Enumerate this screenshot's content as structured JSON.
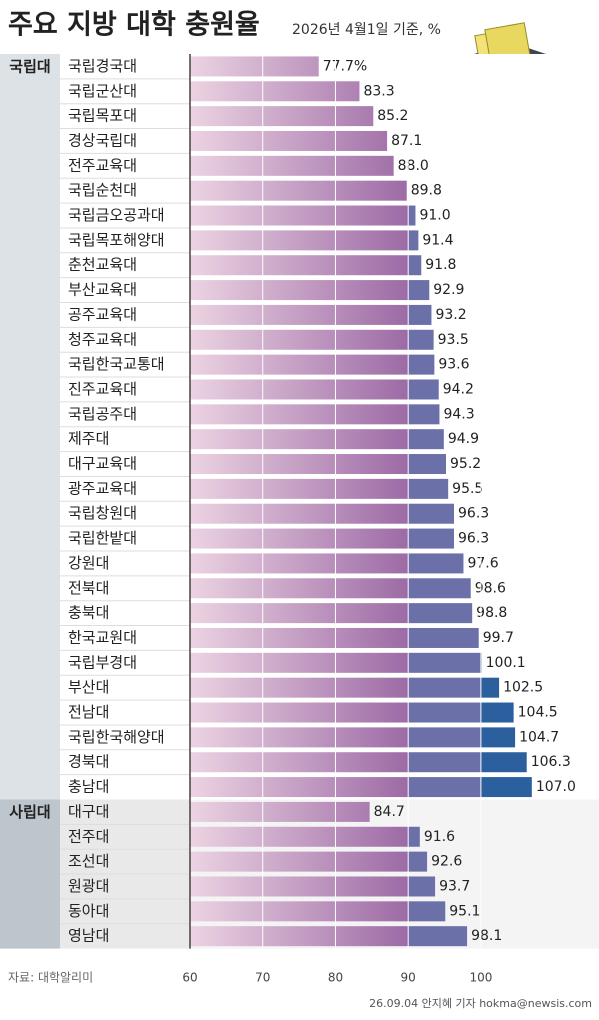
{
  "chart_data": {
    "type": "bar",
    "title": "주요 지방 대학 충원율",
    "subtitle": "2026년 4월1일 기준, %",
    "source": "자료: 대학알리미",
    "credit": "26.09.04 안지혜 기자 hokma@newsis.com",
    "xlim": [
      60,
      115
    ],
    "xticks": [
      60,
      70,
      80,
      90,
      100
    ],
    "grid": true,
    "colors": {
      "start": "#ecd3e2",
      "mid": "#9c6aa5",
      "over90": "#6b70a8",
      "over100": "#2c5f9e"
    },
    "groups": [
      {
        "label": "국립대",
        "categories": [
          "국립경국대",
          "국립군산대",
          "국립목포대",
          "경상국립대",
          "전주교육대",
          "국립순천대",
          "국립금오공과대",
          "국립목포해양대",
          "춘천교육대",
          "부산교육대",
          "공주교육대",
          "청주교육대",
          "국립한국교통대",
          "진주교육대",
          "국립공주대",
          "제주대",
          "대구교육대",
          "광주교육대",
          "국립창원대",
          "국립한밭대",
          "강원대",
          "전북대",
          "충북대",
          "한국교원대",
          "국립부경대",
          "부산대",
          "전남대",
          "국립한국해양대",
          "경북대",
          "충남대"
        ],
        "values": [
          77.7,
          83.3,
          85.2,
          87.1,
          88.0,
          89.8,
          91.0,
          91.4,
          91.8,
          92.9,
          93.2,
          93.5,
          93.6,
          94.2,
          94.3,
          94.9,
          95.2,
          95.5,
          96.3,
          96.3,
          97.6,
          98.6,
          98.8,
          99.7,
          100.1,
          102.5,
          104.5,
          104.7,
          106.3,
          107.0
        ],
        "value_labels": [
          "77.7%",
          "83.3",
          "85.2",
          "87.1",
          "88.0",
          "89.8",
          "91.0",
          "91.4",
          "91.8",
          "92.9",
          "93.2",
          "93.5",
          "93.6",
          "94.2",
          "94.3",
          "94.9",
          "95.2",
          "95.5",
          "96.3",
          "96.3",
          "97.6",
          "98.6",
          "98.8",
          "99.7",
          "100.1",
          "102.5",
          "104.5",
          "104.7",
          "106.3",
          "107.0"
        ]
      },
      {
        "label": "사립대",
        "categories": [
          "대구대",
          "전주대",
          "조선대",
          "원광대",
          "동아대",
          "영남대"
        ],
        "values": [
          84.7,
          91.6,
          92.6,
          93.7,
          95.1,
          98.1
        ],
        "value_labels": [
          "84.7",
          "91.6",
          "92.6",
          "93.7",
          "95.1",
          "98.1"
        ]
      }
    ]
  }
}
